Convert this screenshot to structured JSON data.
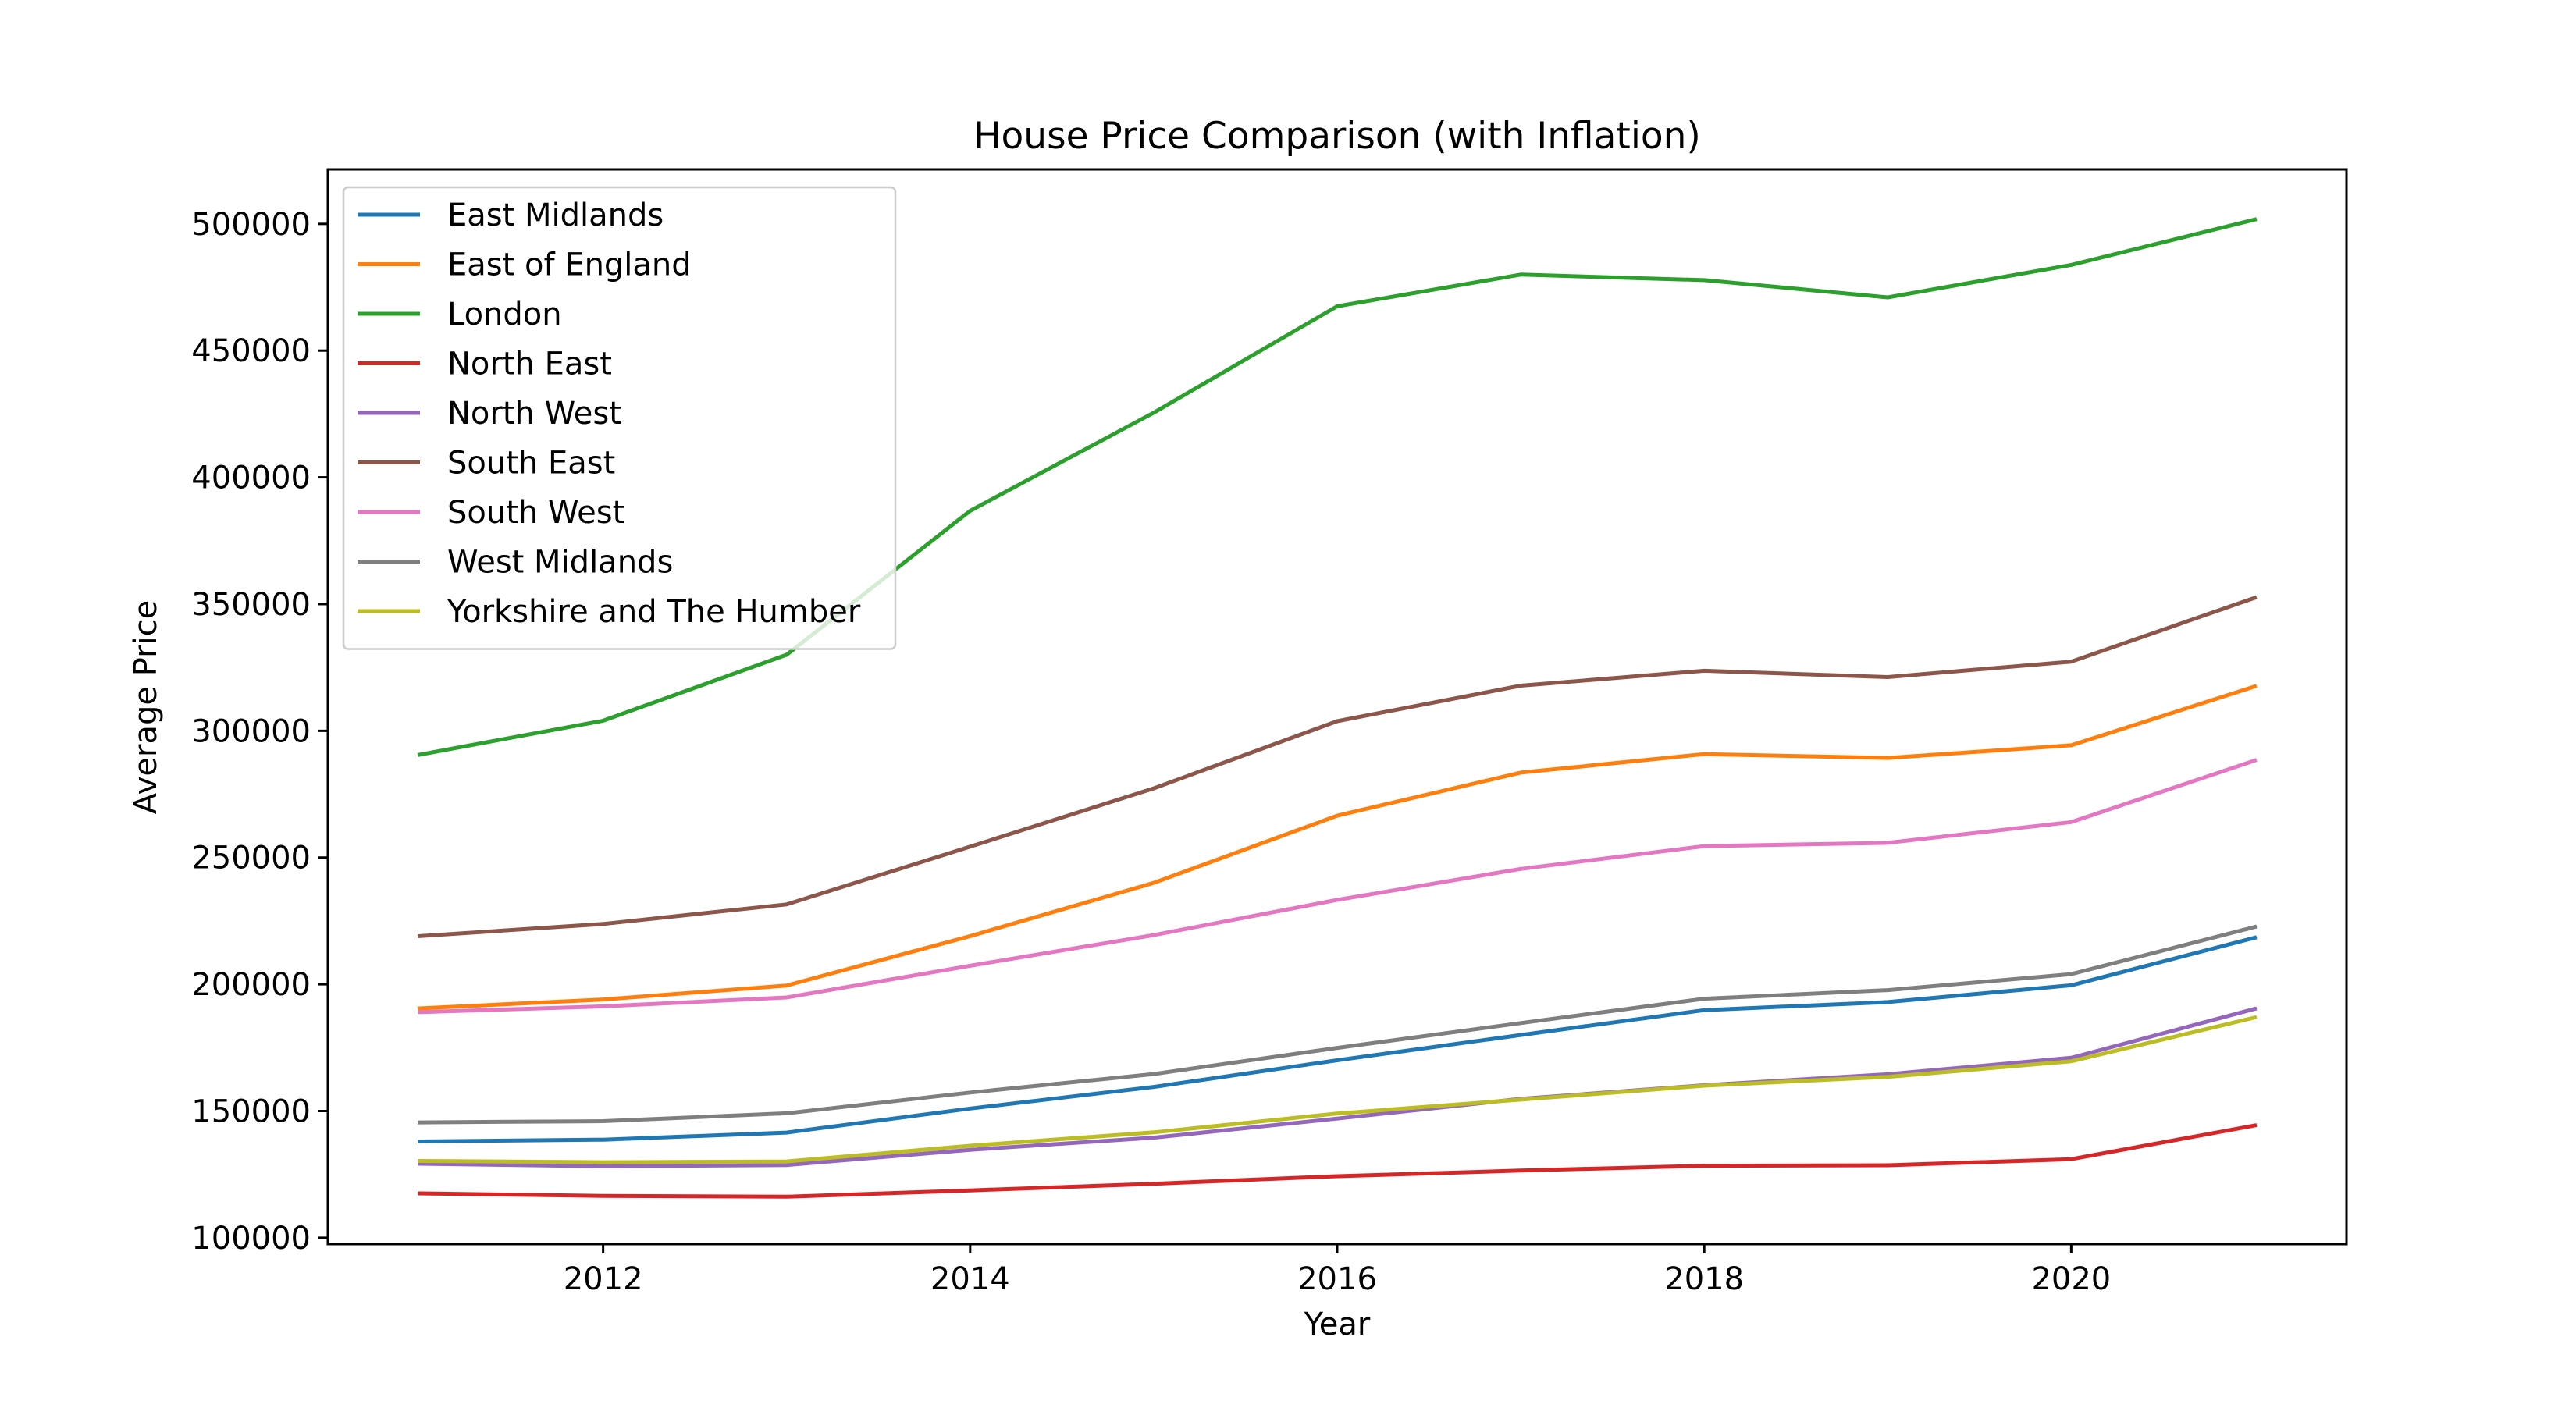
{
  "chart_data": {
    "type": "line",
    "title": "House Price Comparison (with Inflation)",
    "xlabel": "Year",
    "ylabel": "Average Price",
    "x": [
      2011,
      2012,
      2013,
      2014,
      2015,
      2016,
      2017,
      2018,
      2019,
      2020,
      2021
    ],
    "xlim": [
      2010.5,
      2021.5
    ],
    "ylim": [
      97500,
      521500
    ],
    "x_ticks": [
      2012,
      2014,
      2016,
      2018,
      2020
    ],
    "y_ticks": [
      100000,
      150000,
      200000,
      250000,
      300000,
      350000,
      400000,
      450000,
      500000
    ],
    "grid": false,
    "legend_position": "top-left",
    "series": [
      {
        "name": "East Midlands",
        "color": "#1f77b4",
        "values": [
          138000,
          138700,
          141500,
          151000,
          159500,
          170000,
          180000,
          189800,
          193000,
          199600,
          218400
        ]
      },
      {
        "name": "East of England",
        "color": "#ff7f0e",
        "values": [
          190500,
          194000,
          199500,
          219000,
          240000,
          266500,
          283500,
          290800,
          289300,
          294300,
          317500
        ]
      },
      {
        "name": "London",
        "color": "#2ca02c",
        "values": [
          290600,
          304000,
          330000,
          386800,
          425500,
          467500,
          480000,
          477800,
          471000,
          483800,
          501700
        ]
      },
      {
        "name": "North East",
        "color": "#d62728",
        "values": [
          117500,
          116500,
          116200,
          118700,
          121300,
          124300,
          126500,
          128400,
          128600,
          131000,
          144300
        ]
      },
      {
        "name": "North West",
        "color": "#9467bd",
        "values": [
          129200,
          128200,
          128700,
          134700,
          139500,
          147000,
          154800,
          160200,
          164500,
          171000,
          190300
        ]
      },
      {
        "name": "South East",
        "color": "#8c564b",
        "values": [
          219000,
          223800,
          231500,
          254300,
          277300,
          303800,
          317800,
          323700,
          321200,
          327300,
          352500
        ]
      },
      {
        "name": "South West",
        "color": "#e377c2",
        "values": [
          189000,
          191300,
          194800,
          207300,
          219400,
          233300,
          245500,
          254500,
          255800,
          264000,
          288300
        ]
      },
      {
        "name": "West Midlands",
        "color": "#7f7f7f",
        "values": [
          145500,
          146000,
          149100,
          157300,
          164600,
          174900,
          184700,
          194300,
          197700,
          204000,
          222600
        ]
      },
      {
        "name": "Yorkshire and The Humber",
        "color": "#bcbd22",
        "values": [
          130300,
          129800,
          130100,
          136300,
          141600,
          149000,
          154500,
          160000,
          163500,
          169600,
          186900
        ]
      }
    ]
  }
}
